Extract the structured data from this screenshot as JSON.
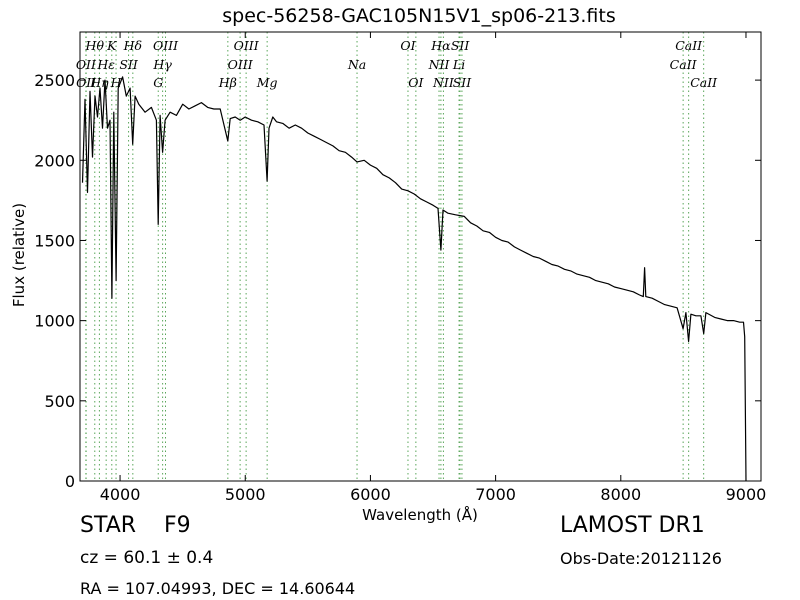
{
  "chart_data": {
    "type": "line",
    "title": "spec-56258-GAC105N15V1_sp06-213.fits",
    "xlabel": "Wavelength (Å)",
    "ylabel": "Flux (relative)",
    "xlim": [
      3680,
      9120
    ],
    "ylim": [
      0,
      2800
    ],
    "xticks": [
      4000,
      5000,
      6000,
      7000,
      8000,
      9000
    ],
    "yticks": [
      0,
      500,
      1000,
      1500,
      2000,
      2500
    ],
    "grid": false,
    "line_color": "#000000",
    "marker_color": "#5aa65a",
    "spectrum": [
      [
        3700,
        1860
      ],
      [
        3720,
        2380
      ],
      [
        3740,
        1800
      ],
      [
        3760,
        2430
      ],
      [
        3780,
        2020
      ],
      [
        3800,
        2400
      ],
      [
        3820,
        2270
      ],
      [
        3840,
        2450
      ],
      [
        3860,
        2200
      ],
      [
        3880,
        2500
      ],
      [
        3900,
        2200
      ],
      [
        3920,
        2250
      ],
      [
        3935,
        1140
      ],
      [
        3950,
        2300
      ],
      [
        3968,
        1250
      ],
      [
        3985,
        2450
      ],
      [
        4000,
        2480
      ],
      [
        4020,
        2520
      ],
      [
        4050,
        2400
      ],
      [
        4080,
        2450
      ],
      [
        4101,
        2100
      ],
      [
        4120,
        2400
      ],
      [
        4150,
        2350
      ],
      [
        4200,
        2300
      ],
      [
        4250,
        2330
      ],
      [
        4290,
        2250
      ],
      [
        4305,
        1600
      ],
      [
        4320,
        2280
      ],
      [
        4340,
        2050
      ],
      [
        4360,
        2250
      ],
      [
        4400,
        2300
      ],
      [
        4450,
        2280
      ],
      [
        4500,
        2350
      ],
      [
        4550,
        2320
      ],
      [
        4600,
        2340
      ],
      [
        4650,
        2360
      ],
      [
        4700,
        2330
      ],
      [
        4750,
        2320
      ],
      [
        4800,
        2320
      ],
      [
        4861,
        2120
      ],
      [
        4880,
        2260
      ],
      [
        4920,
        2270
      ],
      [
        4960,
        2250
      ],
      [
        5000,
        2270
      ],
      [
        5050,
        2250
      ],
      [
        5100,
        2240
      ],
      [
        5150,
        2220
      ],
      [
        5175,
        1870
      ],
      [
        5190,
        2200
      ],
      [
        5220,
        2270
      ],
      [
        5250,
        2240
      ],
      [
        5300,
        2230
      ],
      [
        5350,
        2200
      ],
      [
        5400,
        2220
      ],
      [
        5450,
        2200
      ],
      [
        5500,
        2170
      ],
      [
        5550,
        2150
      ],
      [
        5600,
        2130
      ],
      [
        5650,
        2110
      ],
      [
        5700,
        2090
      ],
      [
        5750,
        2060
      ],
      [
        5800,
        2050
      ],
      [
        5850,
        2020
      ],
      [
        5893,
        1990
      ],
      [
        5950,
        2000
      ],
      [
        6000,
        1970
      ],
      [
        6050,
        1950
      ],
      [
        6100,
        1910
      ],
      [
        6150,
        1890
      ],
      [
        6200,
        1860
      ],
      [
        6250,
        1820
      ],
      [
        6300,
        1810
      ],
      [
        6350,
        1790
      ],
      [
        6400,
        1760
      ],
      [
        6450,
        1740
      ],
      [
        6500,
        1720
      ],
      [
        6540,
        1700
      ],
      [
        6563,
        1440
      ],
      [
        6580,
        1690
      ],
      [
        6620,
        1670
      ],
      [
        6680,
        1660
      ],
      [
        6750,
        1650
      ],
      [
        6800,
        1610
      ],
      [
        6850,
        1590
      ],
      [
        6900,
        1560
      ],
      [
        6950,
        1550
      ],
      [
        7000,
        1520
      ],
      [
        7050,
        1500
      ],
      [
        7100,
        1490
      ],
      [
        7150,
        1460
      ],
      [
        7200,
        1440
      ],
      [
        7250,
        1420
      ],
      [
        7300,
        1400
      ],
      [
        7350,
        1390
      ],
      [
        7400,
        1370
      ],
      [
        7450,
        1350
      ],
      [
        7500,
        1340
      ],
      [
        7550,
        1320
      ],
      [
        7600,
        1310
      ],
      [
        7650,
        1290
      ],
      [
        7700,
        1280
      ],
      [
        7750,
        1270
      ],
      [
        7800,
        1250
      ],
      [
        7850,
        1240
      ],
      [
        7900,
        1230
      ],
      [
        7950,
        1210
      ],
      [
        8000,
        1200
      ],
      [
        8050,
        1190
      ],
      [
        8100,
        1180
      ],
      [
        8150,
        1160
      ],
      [
        8180,
        1150
      ],
      [
        8190,
        1330
      ],
      [
        8200,
        1150
      ],
      [
        8250,
        1140
      ],
      [
        8300,
        1120
      ],
      [
        8350,
        1100
      ],
      [
        8400,
        1090
      ],
      [
        8450,
        1080
      ],
      [
        8498,
        950
      ],
      [
        8520,
        1050
      ],
      [
        8542,
        870
      ],
      [
        8560,
        1040
      ],
      [
        8600,
        1030
      ],
      [
        8640,
        1030
      ],
      [
        8662,
        920
      ],
      [
        8680,
        1050
      ],
      [
        8750,
        1020
      ],
      [
        8800,
        1010
      ],
      [
        8850,
        1000
      ],
      [
        8900,
        1000
      ],
      [
        8950,
        990
      ],
      [
        8980,
        990
      ],
      [
        8990,
        900
      ],
      [
        9000,
        0
      ]
    ],
    "lines": [
      {
        "label": "Hθ",
        "x": 3798,
        "row": 1,
        "color": "#5aa65a"
      },
      {
        "label": "K",
        "x": 3934,
        "row": 1,
        "color": "#5aa65a"
      },
      {
        "label": "Hδ",
        "x": 4102,
        "row": 1,
        "color": "#5aa65a"
      },
      {
        "label": "OIII",
        "x": 4363,
        "row": 1,
        "color": "#5aa65a"
      },
      {
        "label": "OIII",
        "x": 5007,
        "row": 1,
        "color": "#5aa65a"
      },
      {
        "label": "OI",
        "x": 6300,
        "row": 1,
        "color": "#5aa65a"
      },
      {
        "label": "Hα",
        "x": 6563,
        "row": 1,
        "color": "#5aa65a"
      },
      {
        "label": "SII",
        "x": 6716,
        "row": 1,
        "color": "#5aa65a"
      },
      {
        "label": "CaII",
        "x": 8542,
        "row": 1,
        "color": "#5aa65a"
      },
      {
        "label": "OII",
        "x": 3727,
        "row": 2,
        "color": "#5aa65a"
      },
      {
        "label": "Hε",
        "x": 3889,
        "row": 2,
        "color": "#5aa65a"
      },
      {
        "label": "SII",
        "x": 4068,
        "row": 2,
        "color": "#5aa65a"
      },
      {
        "label": "Hγ",
        "x": 4340,
        "row": 2,
        "color": "#5aa65a"
      },
      {
        "label": "OIII",
        "x": 4959,
        "row": 2,
        "color": "#5aa65a"
      },
      {
        "label": "Na",
        "x": 5893,
        "row": 2,
        "color": "#5aa65a"
      },
      {
        "label": "NII",
        "x": 6548,
        "row": 2,
        "color": "#5aa65a"
      },
      {
        "label": "Li",
        "x": 6708,
        "row": 2,
        "color": "#5aa65a"
      },
      {
        "label": "CaII",
        "x": 8498,
        "row": 2,
        "color": "#5aa65a"
      },
      {
        "label": "OII",
        "x": 3729,
        "row": 3,
        "color": "#5aa65a"
      },
      {
        "label": "Hη",
        "x": 3835,
        "row": 3,
        "color": "#5aa65a"
      },
      {
        "label": "H",
        "x": 3968,
        "row": 3,
        "color": "#5aa65a"
      },
      {
        "label": "G",
        "x": 4305,
        "row": 3,
        "color": "#5aa65a"
      },
      {
        "label": "Hβ",
        "x": 4861,
        "row": 3,
        "color": "#5aa65a"
      },
      {
        "label": "Mg",
        "x": 5175,
        "row": 3,
        "color": "#5aa65a"
      },
      {
        "label": "OI",
        "x": 6363,
        "row": 3,
        "color": "#5aa65a"
      },
      {
        "label": "NII",
        "x": 6583,
        "row": 3,
        "color": "#5aa65a"
      },
      {
        "label": "SII",
        "x": 6731,
        "row": 3,
        "color": "#5aa65a"
      },
      {
        "label": "CaII",
        "x": 8662,
        "row": 3,
        "color": "#5aa65a"
      }
    ]
  },
  "info": {
    "object_class": "STAR",
    "subclass": "F9",
    "survey": "LAMOST DR1",
    "cz_text": "cz = 60.1 ± 0.4",
    "obs_date": "Obs-Date:20121126",
    "radec": "RA = 107.04993, DEC = 14.60644"
  }
}
